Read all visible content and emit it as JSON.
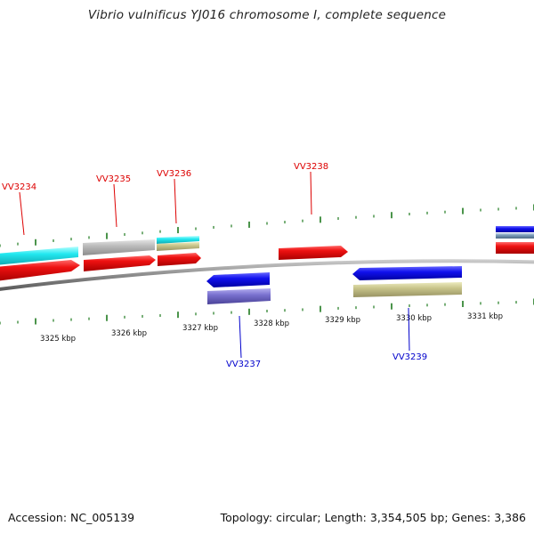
{
  "title": "Vibrio vulnificus YJ016 chromosome I, complete sequence",
  "footer": {
    "accession": "Accession: NC_005139",
    "summary": "Topology: circular; Length: 3,354,505 bp; Genes: 3,386"
  },
  "colors": {
    "forward_label": "#dd0000",
    "reverse_label": "#0000cc",
    "tick": "#1e7a1e",
    "backbone": "#8a8a8a",
    "red": "#ee1111",
    "cyan": "#22e8f0",
    "gray": "#b8b8b8",
    "khaki": "#c8c48a",
    "blue": "#1111ee",
    "slate": "#7a72d0",
    "steel": "#7a9ab8"
  },
  "scale": {
    "unit": "kbp",
    "tick_labels": [
      "3325 kbp",
      "3326 kbp",
      "3327 kbp",
      "3328 kbp",
      "3329 kbp",
      "3330 kbp",
      "3331 kbp"
    ]
  },
  "genes": [
    {
      "name": "VV3234",
      "strand": "forward"
    },
    {
      "name": "VV3235",
      "strand": "forward"
    },
    {
      "name": "VV3236",
      "strand": "forward"
    },
    {
      "name": "VV3237",
      "strand": "reverse"
    },
    {
      "name": "VV3238",
      "strand": "forward"
    },
    {
      "name": "VV3239",
      "strand": "reverse"
    }
  ]
}
